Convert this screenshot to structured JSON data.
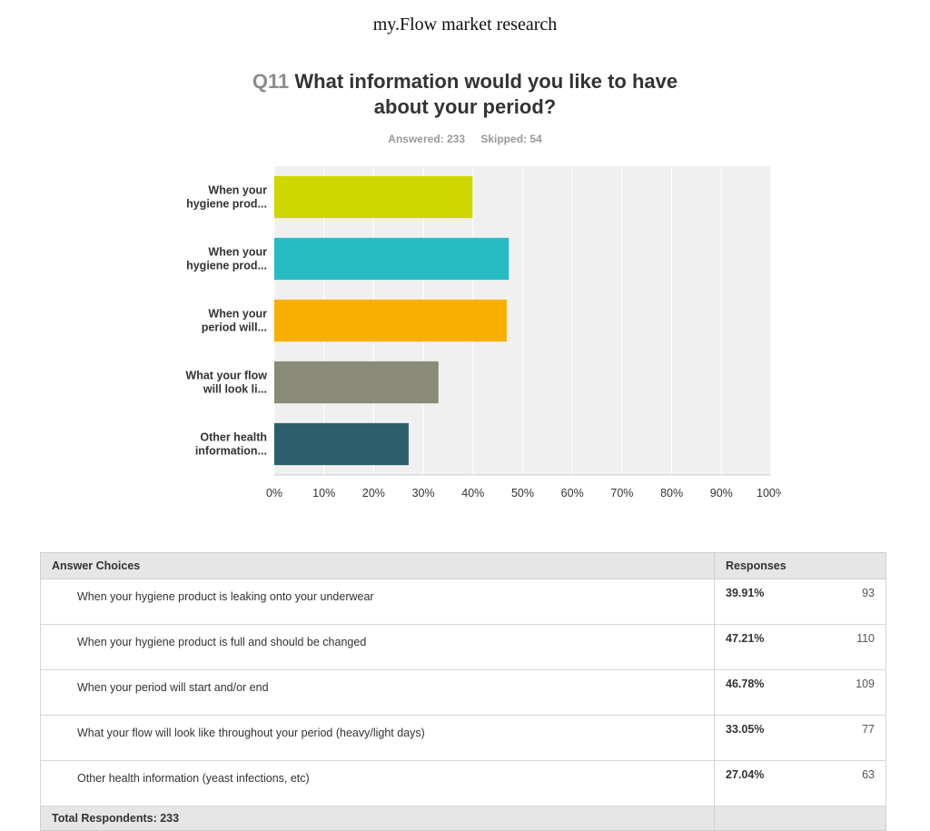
{
  "page": {
    "title": "my.Flow market research"
  },
  "question": {
    "number": "Q11",
    "text": "What information would you like to have about your period?",
    "answered": "Answered: 233",
    "skipped": "Skipped: 54"
  },
  "chart_data": {
    "type": "bar",
    "orientation": "horizontal",
    "categories": [
      [
        "When your",
        "hygiene prod..."
      ],
      [
        "When your",
        "hygiene prod..."
      ],
      [
        "When your",
        "period will..."
      ],
      [
        "What your flow",
        "will look li..."
      ],
      [
        "Other health",
        "information..."
      ]
    ],
    "values": [
      39.91,
      47.21,
      46.78,
      33.05,
      27.04
    ],
    "colors": [
      "#cfd600",
      "#27bcc1",
      "#f7b000",
      "#898a78",
      "#2c5e6c"
    ],
    "xlim": [
      0,
      100
    ],
    "ticks": [
      "0%",
      "10%",
      "20%",
      "30%",
      "40%",
      "50%",
      "60%",
      "70%",
      "80%",
      "90%",
      "100%"
    ],
    "grid": true,
    "plot_background": "#f0f0f0"
  },
  "table": {
    "headers": {
      "choice": "Answer Choices",
      "responses": "Responses"
    },
    "rows": [
      {
        "choice": "When your hygiene product is leaking onto your underwear",
        "percent": "39.91%",
        "count": "93"
      },
      {
        "choice": "When your hygiene product is full and should be changed",
        "percent": "47.21%",
        "count": "110"
      },
      {
        "choice": "When your period will start and/or end",
        "percent": "46.78%",
        "count": "109"
      },
      {
        "choice": "What your flow will look like throughout your period (heavy/light days)",
        "percent": "33.05%",
        "count": "77"
      },
      {
        "choice": "Other health information (yeast infections, etc)",
        "percent": "27.04%",
        "count": "63"
      }
    ],
    "total": "Total Respondents: 233"
  }
}
